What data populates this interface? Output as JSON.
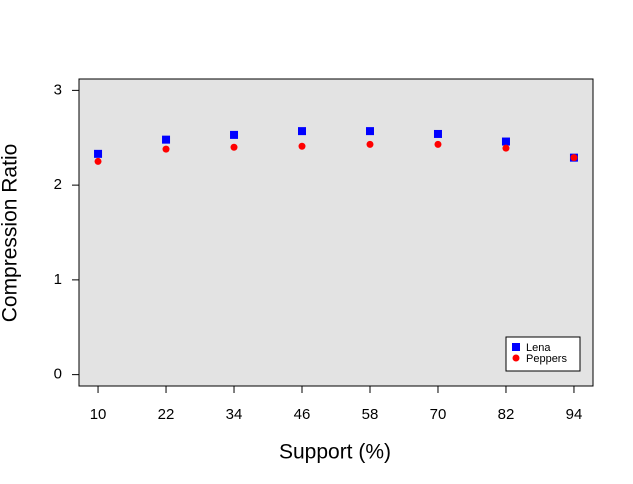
{
  "chart_data": {
    "type": "scatter",
    "x_label": "Support (%)",
    "y_label": "Compression Ratio",
    "x": [
      10,
      22,
      34,
      46,
      58,
      70,
      82,
      94
    ],
    "series": [
      {
        "name": "Lena",
        "color": "#0000ff",
        "marker": "square",
        "values": [
          2.33,
          2.48,
          2.53,
          2.57,
          2.57,
          2.54,
          2.46,
          2.29
        ]
      },
      {
        "name": "Peppers",
        "color": "#ff0000",
        "marker": "circle",
        "values": [
          2.25,
          2.38,
          2.4,
          2.41,
          2.43,
          2.43,
          2.39,
          2.29
        ]
      }
    ],
    "xlim": [
      6.64,
      97.36
    ],
    "xticks": [
      10,
      22,
      34,
      46,
      58,
      70,
      82,
      94
    ],
    "ylim": [
      -0.12,
      3.12
    ],
    "yticks": [
      0,
      1,
      2,
      3
    ],
    "background": "#e3e3e3",
    "legend": "bottom-right"
  }
}
